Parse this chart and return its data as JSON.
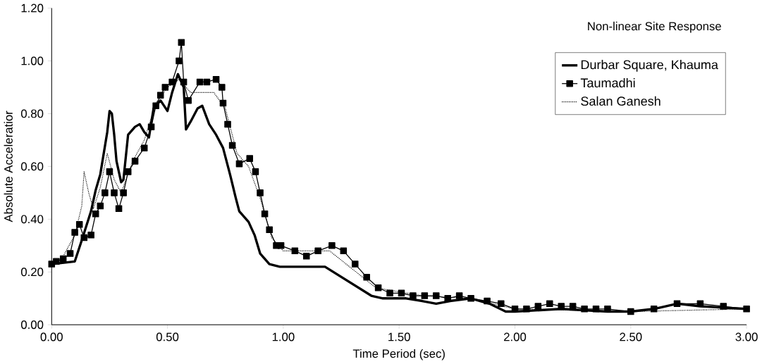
{
  "chart_data": {
    "type": "line",
    "xlabel": "Time Period (sec)",
    "ylabel": "Absolute Acceleratior",
    "annotations": [
      "Non-linear Site Response"
    ],
    "xlim": [
      0,
      3
    ],
    "ylim": [
      0,
      1.2
    ],
    "xticks": [
      {
        "value": 0,
        "label": "0.00"
      },
      {
        "value": 0.5,
        "label": "0.50"
      },
      {
        "value": 1,
        "label": "1.00"
      },
      {
        "value": 1.5,
        "label": "1.50"
      },
      {
        "value": 2,
        "label": "2.00"
      },
      {
        "value": 2.5,
        "label": "2.50"
      },
      {
        "value": 3,
        "label": "3.00"
      }
    ],
    "yticks": [
      {
        "value": 0,
        "label": "0.00"
      },
      {
        "value": 0.2,
        "label": "0.20"
      },
      {
        "value": 0.4,
        "label": "0.40"
      },
      {
        "value": 0.6,
        "label": "0.60"
      },
      {
        "value": 0.8,
        "label": "0.80"
      },
      {
        "value": 1,
        "label": "1.00"
      },
      {
        "value": 1.2,
        "label": "1.20"
      }
    ],
    "grid": false,
    "legend": "top right",
    "series": [
      {
        "name": "Durbar Square, Khauma",
        "color": "#000000",
        "marker": "none",
        "line_style": "solid",
        "x": [
          0,
          0.1,
          0.13,
          0.17,
          0.19,
          0.21,
          0.24,
          0.25,
          0.26,
          0.27,
          0.28,
          0.3,
          0.31,
          0.33,
          0.36,
          0.38,
          0.4,
          0.42,
          0.44,
          0.47,
          0.5,
          0.52,
          0.545,
          0.57,
          0.58,
          0.6,
          0.63,
          0.65,
          0.68,
          0.71,
          0.74,
          0.77,
          0.795,
          0.81,
          0.85,
          0.876,
          0.9,
          0.94,
          0.985,
          1.03,
          1.18,
          1.38,
          1.43,
          1.53,
          1.6,
          1.66,
          1.72,
          1.81,
          1.89,
          1.96,
          2.0,
          2.2,
          2.4,
          2.5,
          2.6,
          2.7,
          2.8,
          3.0
        ],
        "values": [
          0.23,
          0.24,
          0.32,
          0.43,
          0.51,
          0.57,
          0.73,
          0.81,
          0.8,
          0.72,
          0.62,
          0.54,
          0.55,
          0.72,
          0.75,
          0.76,
          0.73,
          0.71,
          0.82,
          0.85,
          0.81,
          0.88,
          0.95,
          0.9,
          0.74,
          0.77,
          0.82,
          0.83,
          0.76,
          0.72,
          0.67,
          0.57,
          0.48,
          0.43,
          0.39,
          0.34,
          0.27,
          0.23,
          0.22,
          0.22,
          0.22,
          0.11,
          0.1,
          0.1,
          0.09,
          0.08,
          0.09,
          0.1,
          0.08,
          0.05,
          0.05,
          0.06,
          0.05,
          0.05,
          0.06,
          0.08,
          0.07,
          0.06
        ]
      },
      {
        "name": "Taumadhi",
        "color": "#000000",
        "marker": "square",
        "line_style": "solid",
        "x": [
          0,
          0.02,
          0.05,
          0.08,
          0.1,
          0.12,
          0.14,
          0.17,
          0.19,
          0.21,
          0.23,
          0.25,
          0.27,
          0.29,
          0.31,
          0.33,
          0.36,
          0.4,
          0.43,
          0.45,
          0.47,
          0.49,
          0.52,
          0.55,
          0.56,
          0.57,
          0.59,
          0.64,
          0.67,
          0.71,
          0.735,
          0.74,
          0.76,
          0.78,
          0.81,
          0.855,
          0.88,
          0.9,
          0.92,
          0.94,
          0.97,
          0.99,
          1.05,
          1.1,
          1.15,
          1.21,
          1.26,
          1.31,
          1.36,
          1.41,
          1.46,
          1.51,
          1.56,
          1.61,
          1.66,
          1.71,
          1.76,
          1.81,
          1.88,
          1.94,
          2.0,
          2.05,
          2.1,
          2.15,
          2.2,
          2.25,
          2.3,
          2.35,
          2.4,
          2.5,
          2.6,
          2.7,
          2.8,
          2.9,
          3.0
        ],
        "values": [
          0.23,
          0.24,
          0.25,
          0.27,
          0.35,
          0.38,
          0.33,
          0.34,
          0.42,
          0.45,
          0.5,
          0.58,
          0.5,
          0.44,
          0.5,
          0.58,
          0.62,
          0.67,
          0.75,
          0.83,
          0.87,
          0.9,
          0.92,
          1.0,
          1.07,
          0.92,
          0.85,
          0.92,
          0.92,
          0.93,
          0.9,
          0.84,
          0.76,
          0.68,
          0.61,
          0.63,
          0.58,
          0.5,
          0.42,
          0.36,
          0.3,
          0.3,
          0.28,
          0.26,
          0.28,
          0.3,
          0.28,
          0.23,
          0.18,
          0.14,
          0.12,
          0.12,
          0.11,
          0.11,
          0.11,
          0.1,
          0.11,
          0.1,
          0.09,
          0.08,
          0.06,
          0.06,
          0.07,
          0.08,
          0.07,
          0.07,
          0.06,
          0.06,
          0.06,
          0.05,
          0.06,
          0.08,
          0.08,
          0.07,
          0.06
        ]
      },
      {
        "name": "Salan Ganesh",
        "color": "#000000",
        "marker": "none",
        "line_style": "dotted",
        "x": [
          0,
          0.05,
          0.1,
          0.13,
          0.14,
          0.16,
          0.18,
          0.21,
          0.24,
          0.27,
          0.3,
          0.35,
          0.4,
          0.45,
          0.5,
          0.55,
          0.6,
          0.65,
          0.7,
          0.75,
          0.8,
          0.85,
          0.9,
          0.95,
          1.0,
          1.2,
          1.4,
          1.6,
          1.8,
          2.0,
          2.5,
          3.0
        ],
        "values": [
          0.23,
          0.26,
          0.34,
          0.45,
          0.58,
          0.5,
          0.44,
          0.52,
          0.65,
          0.55,
          0.5,
          0.62,
          0.7,
          0.84,
          0.9,
          0.93,
          0.88,
          0.88,
          0.88,
          0.82,
          0.65,
          0.6,
          0.48,
          0.33,
          0.28,
          0.28,
          0.14,
          0.11,
          0.1,
          0.06,
          0.05,
          0.06
        ]
      }
    ]
  }
}
